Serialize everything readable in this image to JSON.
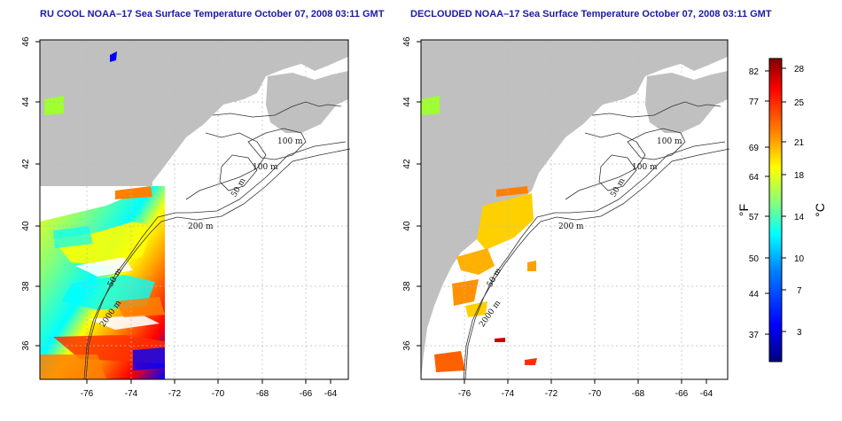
{
  "maps": [
    {
      "title": "RU COOL NOAA–17 Sea Surface Temperature October 07, 2008 03:11 GMT",
      "x_ticks": [
        "-76",
        "-74",
        "-72",
        "-70",
        "-68",
        "-66",
        "-64"
      ],
      "y_ticks": [
        "36",
        "38",
        "40",
        "42",
        "44",
        "46"
      ],
      "contour_labels": [
        "100 m",
        "100 m",
        "50 m",
        "200 m",
        "50 m",
        "2000 m"
      ]
    },
    {
      "title": "DECLOUDED NOAA–17 Sea Surface Temperature October 07, 2008 03:11 GMT",
      "x_ticks": [
        "-76",
        "-74",
        "-72",
        "-70",
        "-68",
        "-66",
        "-64"
      ],
      "y_ticks": [
        "36",
        "38",
        "40",
        "42",
        "44",
        "46"
      ],
      "contour_labels": [
        "100 m",
        "100 m",
        "50 m",
        "200 m",
        "50 m",
        "2000 m"
      ]
    }
  ],
  "colorbar": {
    "fahrenheit_ticks": [
      "82",
      "77",
      "69",
      "64",
      "57",
      "50",
      "44",
      "37"
    ],
    "celsius_ticks": [
      "28",
      "25",
      "21",
      "18",
      "14",
      "10",
      "7",
      "3"
    ],
    "fahrenheit_unit": "°F",
    "celsius_unit": "°C",
    "gradient": [
      "#00007f",
      "#0000ff",
      "#0080ff",
      "#00ffff",
      "#80ff80",
      "#ffff00",
      "#ff8000",
      "#ff0000",
      "#7f0000"
    ]
  },
  "colors": {
    "land": "#c0c0c0",
    "ocean": "#ffffff",
    "title_text": "#1a1aa6"
  }
}
